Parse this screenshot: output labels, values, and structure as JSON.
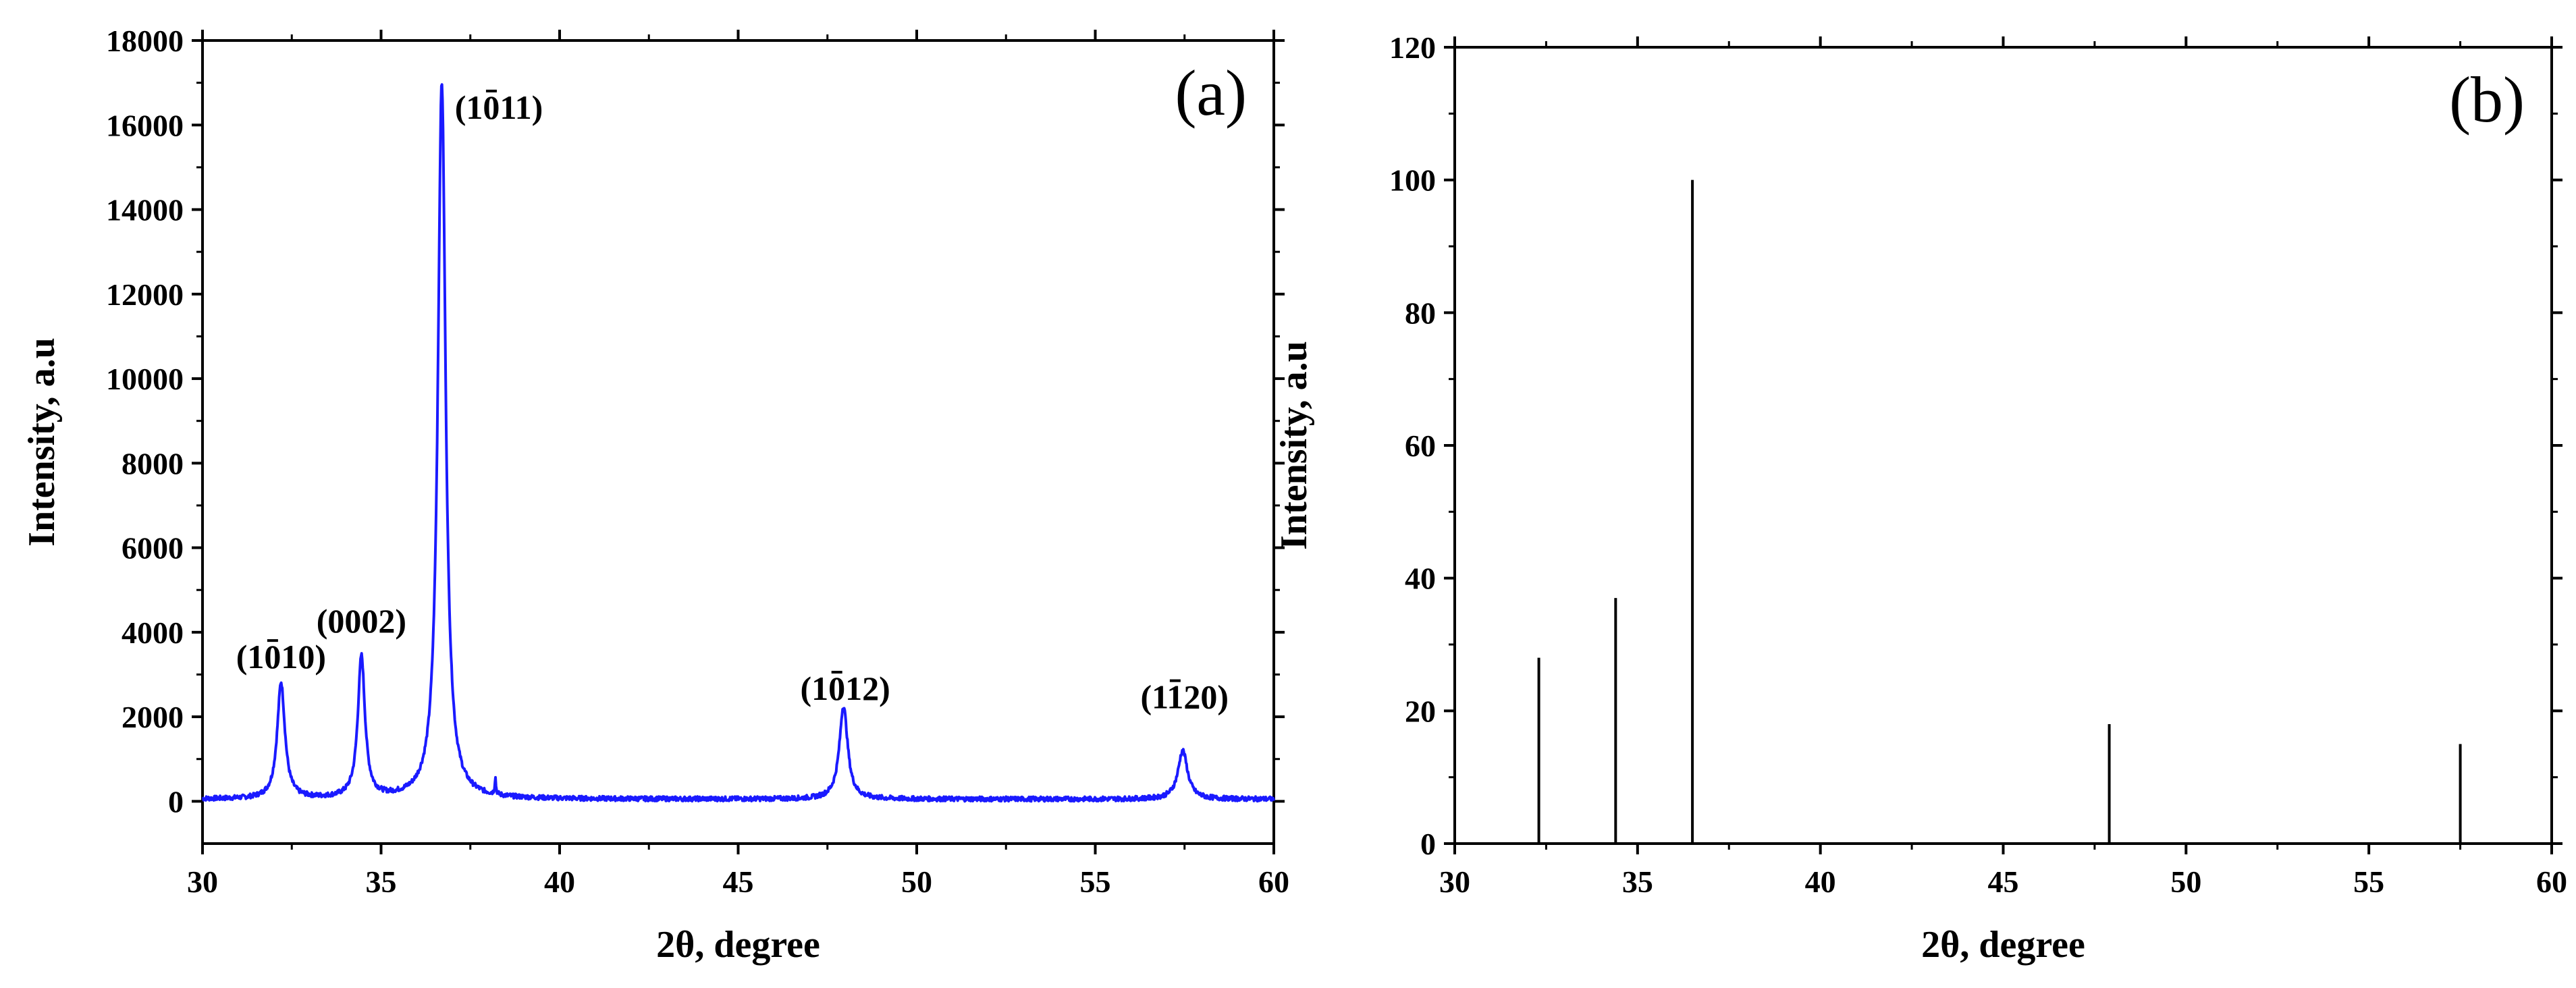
{
  "chart_data": [
    {
      "type": "line",
      "panel_label": "(a)",
      "xlabel": "2θ, degree",
      "ylabel": "Intensity, a.u",
      "xlim": [
        30,
        60
      ],
      "ylim": [
        -1000,
        18000
      ],
      "xticks": [
        "30",
        "35",
        "40",
        "45",
        "50",
        "55",
        "60"
      ],
      "yticks": [
        "0",
        "2000",
        "4000",
        "6000",
        "8000",
        "10000",
        "12000",
        "14000",
        "16000",
        "18000"
      ],
      "series_color": "#1a1aff",
      "baseline": 50,
      "peaks": [
        {
          "x": 32.2,
          "y": 2800,
          "width": 0.13
        },
        {
          "x": 34.45,
          "y": 3400,
          "width": 0.12
        },
        {
          "x": 36.7,
          "y": 17000,
          "width": 0.13
        },
        {
          "x": 38.2,
          "y": 450,
          "width": 0.02
        },
        {
          "x": 47.95,
          "y": 2250,
          "width": 0.14
        },
        {
          "x": 57.45,
          "y": 1200,
          "width": 0.16
        }
      ],
      "annotations": [
        {
          "text": "(1010)",
          "x": 32.2,
          "y": 3150,
          "bar_digit": 2
        },
        {
          "text": "(0002)",
          "x": 34.45,
          "y": 4000,
          "bar_digit": null
        },
        {
          "text": "(1011)",
          "x": 38.3,
          "y": 16150,
          "bar_digit": 2
        },
        {
          "text": "(1012)",
          "x": 48.0,
          "y": 2400,
          "bar_digit": 2
        },
        {
          "text": "(1120)",
          "x": 57.5,
          "y": 2200,
          "bar_digit": 2
        }
      ]
    },
    {
      "type": "bar",
      "panel_label": "(b)",
      "xlabel": "2θ, degree",
      "ylabel": "Intensity, a.u",
      "xlim": [
        30,
        60
      ],
      "ylim": [
        0,
        120
      ],
      "xticks": [
        "30",
        "35",
        "40",
        "45",
        "50",
        "55",
        "60"
      ],
      "yticks": [
        "0",
        "20",
        "40",
        "60",
        "80",
        "100",
        "120"
      ],
      "series_color": "#000000",
      "x": [
        32.3,
        34.4,
        36.5,
        47.9,
        57.5
      ],
      "values": [
        28,
        37,
        100,
        18,
        15
      ]
    }
  ]
}
